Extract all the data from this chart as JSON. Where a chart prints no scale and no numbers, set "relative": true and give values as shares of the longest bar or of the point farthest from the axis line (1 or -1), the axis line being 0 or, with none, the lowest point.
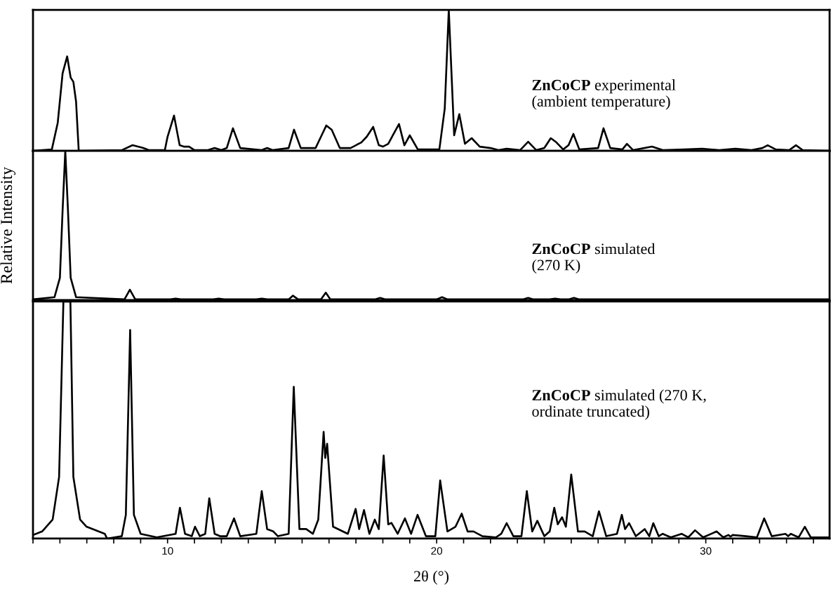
{
  "chart_data": [
    {
      "type": "line",
      "relative": true,
      "xlim": [
        5,
        34.6
      ],
      "xticks": [
        {
          "value": 5,
          "label": null
        },
        {
          "value": 6,
          "label": null
        },
        {
          "value": 7,
          "label": null
        },
        {
          "value": 8,
          "label": null
        },
        {
          "value": 9,
          "label": null
        },
        10,
        {
          "value": 11,
          "label": null
        },
        {
          "value": 12,
          "label": null
        },
        {
          "value": 13,
          "label": null
        },
        {
          "value": 14,
          "label": null
        },
        {
          "value": 15,
          "label": null
        },
        {
          "value": 16,
          "label": null
        },
        {
          "value": 17,
          "label": null
        },
        {
          "value": 18,
          "label": null
        },
        {
          "value": 19,
          "label": null
        },
        20,
        {
          "value": 21,
          "label": null
        },
        {
          "value": 22,
          "label": null
        },
        {
          "value": 23,
          "label": null
        },
        {
          "value": 24,
          "label": null
        },
        {
          "value": 25,
          "label": null
        },
        {
          "value": 26,
          "label": null
        },
        {
          "value": 27,
          "label": null
        },
        {
          "value": 28,
          "label": null
        },
        {
          "value": 29,
          "label": null
        },
        30,
        {
          "value": 31,
          "label": null
        },
        {
          "value": 32,
          "label": null
        },
        {
          "value": 33,
          "label": null
        },
        {
          "value": 34,
          "label": null
        }
      ],
      "tick_labels": false,
      "grid": false,
      "legend": false,
      "annotations": [
        "ZnCoCP experimental\n(ambient temperature)"
      ],
      "series": [
        {
          "color": "#000000",
          "x": [
            5.0,
            5.7,
            5.92,
            6.1,
            6.27,
            6.4,
            6.5,
            6.6,
            6.7,
            8.3,
            8.7,
            9.1,
            9.3,
            9.9,
            10.0,
            10.24,
            10.45,
            10.6,
            10.8,
            11.0,
            11.5,
            11.75,
            12.0,
            12.2,
            12.43,
            12.7,
            13.5,
            13.7,
            13.9,
            14.5,
            14.7,
            14.95,
            15.5,
            15.7,
            15.9,
            16.1,
            16.4,
            16.8,
            17.0,
            17.2,
            17.4,
            17.64,
            17.85,
            18.0,
            18.2,
            18.4,
            18.6,
            18.8,
            19.0,
            19.3,
            20.1,
            20.3,
            20.45,
            20.65,
            20.84,
            21.05,
            21.3,
            21.6,
            22.0,
            22.3,
            22.6,
            23.1,
            23.4,
            23.7,
            24.0,
            24.24,
            24.45,
            24.7,
            24.9,
            25.08,
            25.3,
            26.0,
            26.2,
            26.45,
            26.9,
            27.07,
            27.3,
            28.0,
            28.4,
            29.2,
            29.86,
            30.5,
            31.1,
            31.7,
            32.1,
            32.3,
            32.6,
            33.1,
            33.35,
            33.6,
            34.6
          ],
          "values": [
            0,
            0.01,
            0.2,
            0.55,
            0.67,
            0.52,
            0.49,
            0.35,
            0,
            0.005,
            0.04,
            0.02,
            0.005,
            0.005,
            0.1,
            0.25,
            0.04,
            0.03,
            0.03,
            0.005,
            0.005,
            0.02,
            0.005,
            0.02,
            0.16,
            0.02,
            0.005,
            0.02,
            0.005,
            0.02,
            0.15,
            0.02,
            0.02,
            0.1,
            0.18,
            0.15,
            0.02,
            0.02,
            0.04,
            0.06,
            0.1,
            0.17,
            0.04,
            0.03,
            0.05,
            0.12,
            0.19,
            0.04,
            0.11,
            0.01,
            0.01,
            0.3,
            1.0,
            0.11,
            0.26,
            0.05,
            0.09,
            0.03,
            0.02,
            0.005,
            0.015,
            0.005,
            0.065,
            0.005,
            0.02,
            0.09,
            0.06,
            0.01,
            0.04,
            0.12,
            0.01,
            0.02,
            0.16,
            0.02,
            0.01,
            0.05,
            0.005,
            0.03,
            0.005,
            0.01,
            0.015,
            0.005,
            0.015,
            0.005,
            0.02,
            0.04,
            0.01,
            0.005,
            0.04,
            0.005,
            0
          ]
        }
      ]
    },
    {
      "type": "line",
      "relative": true,
      "xlim": [
        5,
        34.6
      ],
      "xticks": [
        {
          "value": 5,
          "label": null
        },
        {
          "value": 6,
          "label": null
        },
        {
          "value": 7,
          "label": null
        },
        {
          "value": 8,
          "label": null
        },
        {
          "value": 9,
          "label": null
        },
        10,
        {
          "value": 11,
          "label": null
        },
        {
          "value": 12,
          "label": null
        },
        {
          "value": 13,
          "label": null
        },
        {
          "value": 14,
          "label": null
        },
        {
          "value": 15,
          "label": null
        },
        {
          "value": 16,
          "label": null
        },
        {
          "value": 17,
          "label": null
        },
        {
          "value": 18,
          "label": null
        },
        {
          "value": 19,
          "label": null
        },
        20,
        {
          "value": 21,
          "label": null
        },
        {
          "value": 22,
          "label": null
        },
        {
          "value": 23,
          "label": null
        },
        {
          "value": 24,
          "label": null
        },
        {
          "value": 25,
          "label": null
        },
        {
          "value": 26,
          "label": null
        },
        {
          "value": 27,
          "label": null
        },
        {
          "value": 28,
          "label": null
        },
        {
          "value": 29,
          "label": null
        },
        30,
        {
          "value": 31,
          "label": null
        },
        {
          "value": 32,
          "label": null
        },
        {
          "value": 33,
          "label": null
        },
        {
          "value": 34,
          "label": null
        }
      ],
      "tick_labels": false,
      "grid": false,
      "legend": false,
      "ylabel": "Relative Intensity",
      "annotations": [
        "ZnCoCP simulated\n(270 K)"
      ],
      "series": [
        {
          "color": "#000000",
          "x": [
            5.0,
            5.8,
            6.0,
            6.1,
            6.2,
            6.3,
            6.4,
            6.6,
            8.4,
            8.6,
            8.8,
            10.1,
            10.3,
            10.5,
            11.7,
            11.9,
            12.1,
            13.3,
            13.5,
            13.7,
            14.5,
            14.66,
            14.85,
            15.7,
            15.88,
            16.05,
            17.7,
            17.9,
            18.1,
            20.0,
            20.2,
            20.4,
            23.2,
            23.4,
            23.6,
            24.2,
            24.4,
            24.6,
            24.9,
            25.1,
            25.3,
            34.6
          ],
          "values": [
            0.005,
            0.02,
            0.15,
            0.6,
            1.0,
            0.6,
            0.15,
            0.02,
            0.005,
            0.07,
            0.005,
            0.005,
            0.01,
            0.005,
            0.005,
            0.01,
            0.005,
            0.005,
            0.01,
            0.005,
            0.005,
            0.03,
            0.005,
            0.005,
            0.05,
            0.005,
            0.005,
            0.015,
            0.005,
            0.005,
            0.02,
            0.005,
            0.005,
            0.015,
            0.005,
            0.005,
            0.01,
            0.005,
            0.005,
            0.015,
            0.005,
            0.005
          ]
        }
      ]
    },
    {
      "type": "line",
      "relative": true,
      "xlim": [
        5,
        34.6
      ],
      "xticks": [
        {
          "value": 5,
          "label": null
        },
        {
          "value": 6,
          "label": null
        },
        {
          "value": 7,
          "label": null
        },
        {
          "value": 8,
          "label": null
        },
        {
          "value": 9,
          "label": null
        },
        10,
        {
          "value": 11,
          "label": null
        },
        {
          "value": 12,
          "label": null
        },
        {
          "value": 13,
          "label": null
        },
        {
          "value": 14,
          "label": null
        },
        {
          "value": 15,
          "label": null
        },
        {
          "value": 16,
          "label": null
        },
        {
          "value": 17,
          "label": null
        },
        {
          "value": 18,
          "label": null
        },
        {
          "value": 19,
          "label": null
        },
        20,
        {
          "value": 21,
          "label": null
        },
        {
          "value": 22,
          "label": null
        },
        {
          "value": 23,
          "label": null
        },
        {
          "value": 24,
          "label": null
        },
        {
          "value": 25,
          "label": null
        },
        {
          "value": 26,
          "label": null
        },
        {
          "value": 27,
          "label": null
        },
        {
          "value": 28,
          "label": null
        },
        {
          "value": 29,
          "label": null
        },
        30,
        {
          "value": 31,
          "label": null
        },
        {
          "value": 32,
          "label": null
        },
        {
          "value": 33,
          "label": null
        },
        {
          "value": 34,
          "label": null
        }
      ],
      "tick_labels": "x",
      "grid": false,
      "legend": false,
      "xlabel": "2θ (°)",
      "annotations": [
        "ZnCoCP simulated (270 K,\nordinate truncated)"
      ],
      "series": [
        {
          "color": "#000000",
          "x": [
            5.0,
            5.34,
            5.73,
            5.97,
            6.13,
            6.39,
            6.5,
            6.75,
            6.99,
            7.67,
            7.75,
            8.3,
            8.45,
            8.61,
            8.75,
            9.0,
            9.6,
            10.3,
            10.46,
            10.65,
            10.9,
            11.02,
            11.2,
            11.4,
            11.55,
            11.75,
            11.95,
            12.2,
            12.47,
            12.7,
            13.3,
            13.5,
            13.7,
            13.93,
            14.1,
            14.5,
            14.69,
            14.9,
            15.15,
            15.4,
            15.6,
            15.8,
            15.86,
            15.93,
            16.15,
            16.7,
            16.99,
            17.12,
            17.3,
            17.5,
            17.7,
            17.85,
            18.03,
            18.2,
            18.32,
            18.55,
            18.82,
            19.05,
            19.29,
            19.6,
            19.95,
            20.13,
            20.4,
            20.7,
            20.93,
            21.15,
            21.37,
            21.7,
            22.2,
            22.4,
            22.6,
            22.85,
            23.15,
            23.35,
            23.55,
            23.74,
            24.0,
            24.2,
            24.37,
            24.5,
            24.66,
            24.8,
            25.0,
            25.25,
            25.5,
            25.8,
            26.03,
            26.3,
            26.7,
            26.88,
            27.0,
            27.15,
            27.4,
            27.73,
            27.9,
            28.05,
            28.25,
            28.4,
            28.7,
            29.1,
            29.35,
            29.6,
            29.9,
            30.4,
            30.65,
            30.84,
            30.92,
            31.0,
            31.5,
            31.9,
            32.17,
            32.45,
            32.96,
            33.06,
            33.16,
            33.45,
            33.68,
            33.9,
            34.6
          ],
          "values": [
            0.015,
            0.03,
            0.08,
            0.26,
            1,
            1,
            0.26,
            0.08,
            0.05,
            0.02,
            0,
            0.01,
            0.1,
            0.88,
            0.1,
            0.02,
            0.005,
            0.02,
            0.13,
            0.02,
            0.01,
            0.05,
            0.01,
            0.02,
            0.17,
            0.02,
            0.01,
            0.01,
            0.085,
            0.01,
            0.02,
            0.2,
            0.04,
            0.03,
            0.01,
            0.02,
            0.64,
            0.04,
            0.04,
            0.02,
            0.08,
            0.45,
            0.34,
            0.4,
            0.05,
            0.02,
            0.125,
            0.04,
            0.12,
            0.02,
            0.08,
            0.04,
            0.35,
            0.06,
            0.066,
            0.02,
            0.085,
            0.02,
            0.1,
            0.01,
            0.01,
            0.245,
            0.03,
            0.05,
            0.105,
            0.03,
            0.03,
            0.01,
            0.005,
            0.02,
            0.065,
            0.01,
            0.01,
            0.2,
            0.03,
            0.075,
            0.01,
            0.03,
            0.13,
            0.06,
            0.09,
            0.05,
            0.27,
            0.03,
            0.03,
            0.01,
            0.115,
            0.01,
            0.02,
            0.1,
            0.04,
            0.065,
            0.01,
            0.04,
            0.01,
            0.065,
            0.01,
            0.02,
            0.005,
            0.02,
            0.005,
            0.035,
            0.005,
            0.03,
            0.005,
            0.015,
            0.008,
            0.015,
            0.01,
            0.005,
            0.085,
            0.01,
            0.02,
            0.01,
            0.02,
            0.005,
            0.05,
            0.005,
            0.005
          ]
        }
      ]
    }
  ]
}
